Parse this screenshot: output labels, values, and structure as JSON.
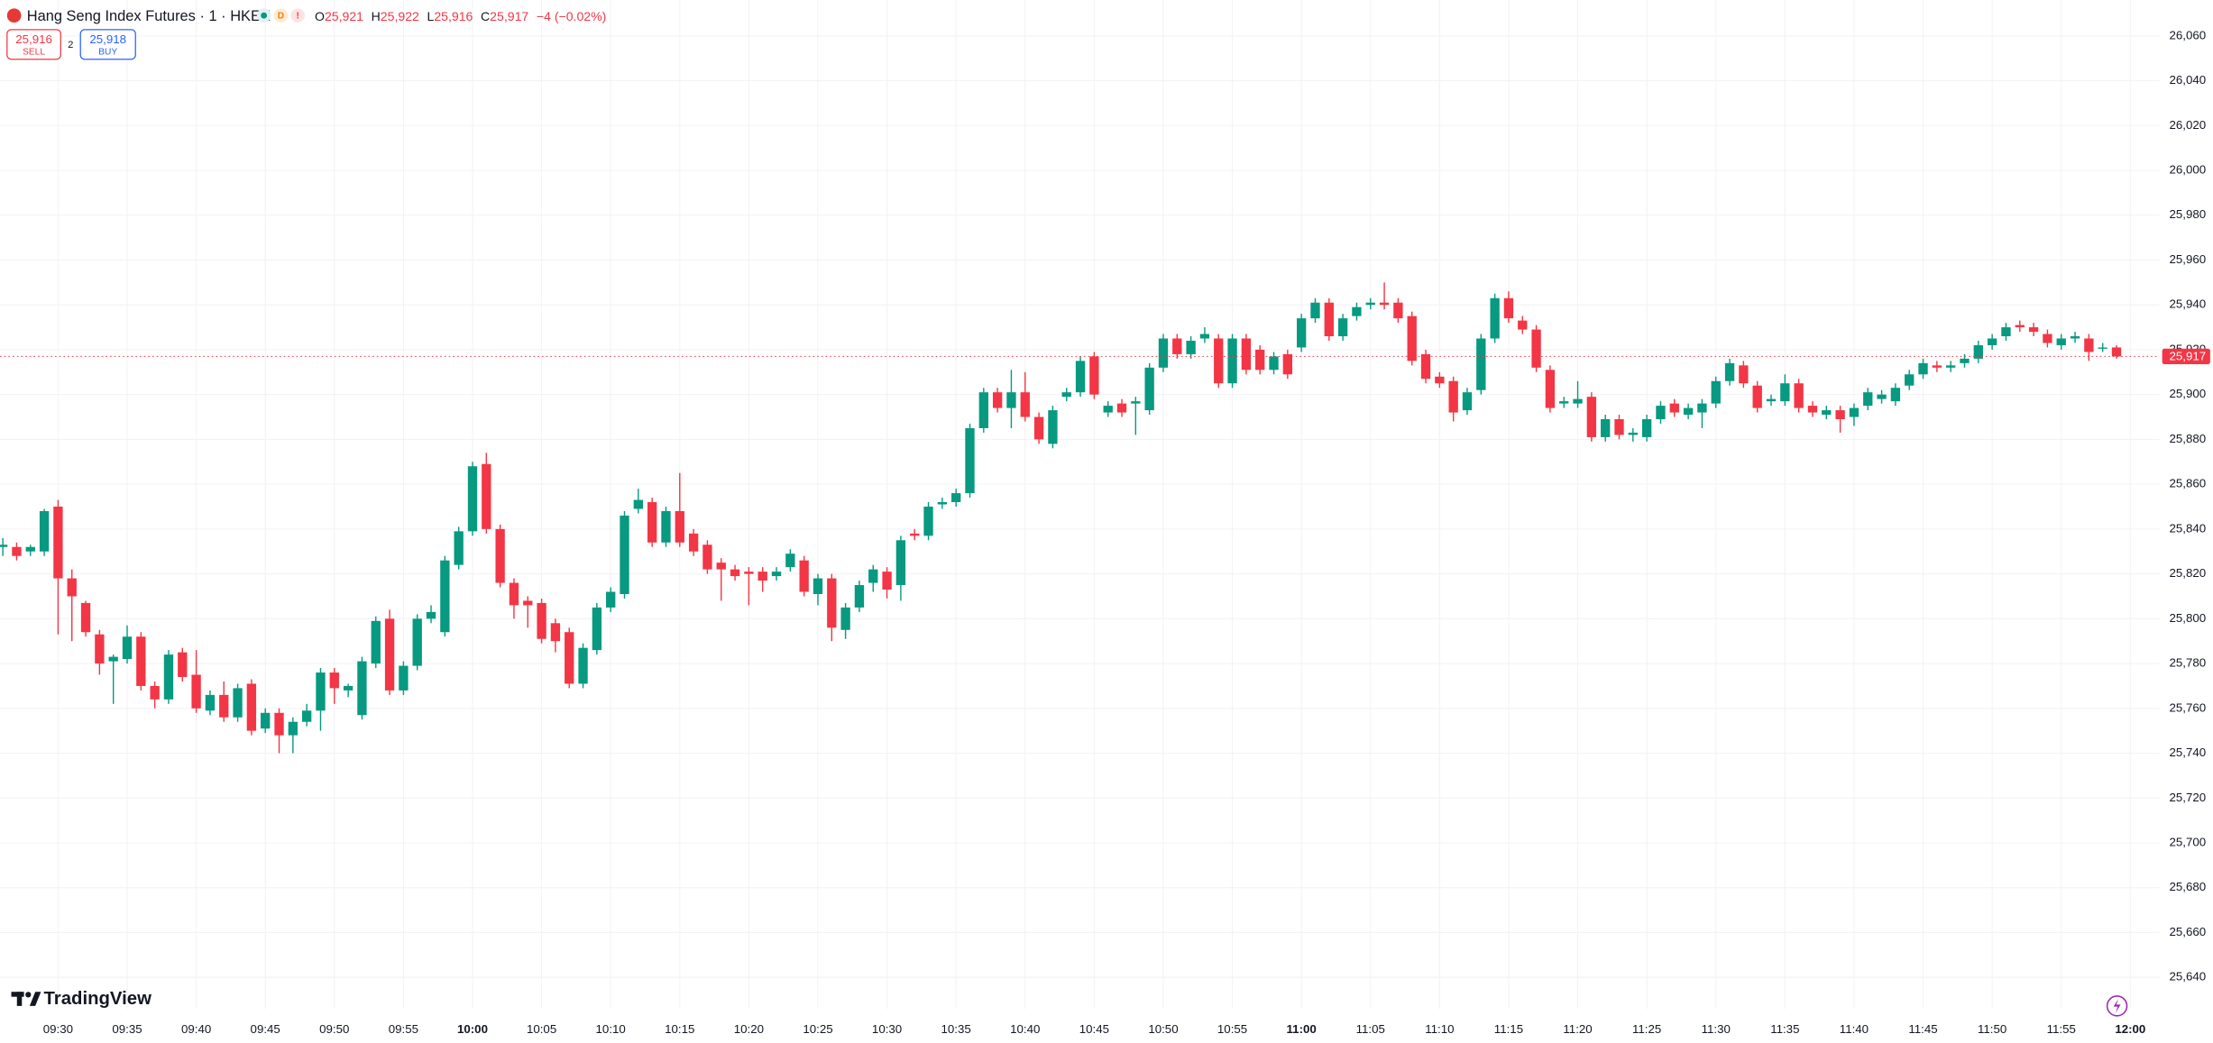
{
  "header": {
    "symbol": "Hang Seng Index Futures · 1 · HKEX",
    "status_d": "D",
    "status_warning": "!",
    "ohlc": [
      {
        "label": "O",
        "value": "25,921"
      },
      {
        "label": "H",
        "value": "25,922"
      },
      {
        "label": "L",
        "value": "25,916"
      },
      {
        "label": "C",
        "value": "25,917"
      }
    ],
    "change": "−4 (−0.02%)"
  },
  "trade": {
    "sell_price": "25,916",
    "sell": "SELL",
    "spread": "2",
    "buy_price": "25,918",
    "buy": "BUY"
  },
  "brand": "TradingView",
  "chart_data": {
    "type": "candlestick",
    "up_color": "#089981",
    "down_color": "#f23645",
    "grid": true,
    "xlim": [
      "09:26",
      "12:02"
    ],
    "ylim": [
      25626,
      26076
    ],
    "x": [
      "09:26",
      "09:27",
      "09:28",
      "09:29",
      "09:30",
      "09:31",
      "09:32",
      "09:33",
      "09:34",
      "09:35",
      "09:36",
      "09:37",
      "09:38",
      "09:39",
      "09:40",
      "09:41",
      "09:42",
      "09:43",
      "09:44",
      "09:45",
      "09:46",
      "09:47",
      "09:48",
      "09:49",
      "09:50",
      "09:51",
      "09:52",
      "09:53",
      "09:54",
      "09:55",
      "09:56",
      "09:57",
      "09:58",
      "09:59",
      "10:00",
      "10:01",
      "10:02",
      "10:03",
      "10:04",
      "10:05",
      "10:06",
      "10:07",
      "10:08",
      "10:09",
      "10:10",
      "10:11",
      "10:12",
      "10:13",
      "10:14",
      "10:15",
      "10:16",
      "10:17",
      "10:18",
      "10:19",
      "10:20",
      "10:21",
      "10:22",
      "10:23",
      "10:24",
      "10:25",
      "10:26",
      "10:27",
      "10:28",
      "10:29",
      "10:30",
      "10:31",
      "10:32",
      "10:33",
      "10:34",
      "10:35",
      "10:36",
      "10:37",
      "10:38",
      "10:39",
      "10:40",
      "10:41",
      "10:42",
      "10:43",
      "10:44",
      "10:45",
      "10:46",
      "10:47",
      "10:48",
      "10:49",
      "10:50",
      "10:51",
      "10:52",
      "10:53",
      "10:54",
      "10:55",
      "10:56",
      "10:57",
      "10:58",
      "10:59",
      "11:00",
      "11:01",
      "11:02",
      "11:03",
      "11:04",
      "11:05",
      "11:06",
      "11:07",
      "11:08",
      "11:09",
      "11:10",
      "11:11",
      "11:12",
      "11:13",
      "11:14",
      "11:15",
      "11:16",
      "11:17",
      "11:18",
      "11:19",
      "11:20",
      "11:21",
      "11:22",
      "11:23",
      "11:24",
      "11:25",
      "11:26",
      "11:27",
      "11:28",
      "11:29",
      "11:30",
      "11:31",
      "11:32",
      "11:33",
      "11:34",
      "11:35",
      "11:36",
      "11:37",
      "11:38",
      "11:39",
      "11:40",
      "11:41",
      "11:42",
      "11:43",
      "11:44",
      "11:45",
      "11:46",
      "11:47",
      "11:48",
      "11:49",
      "11:50",
      "11:51",
      "11:52",
      "11:53",
      "11:54",
      "11:55",
      "11:56",
      "11:57",
      "11:58",
      "11:59"
    ],
    "open": [
      25832,
      25832,
      25830,
      25830,
      25850,
      25818,
      25807,
      25793,
      25781,
      25782,
      25792,
      25770,
      25764,
      25785,
      25775,
      25759,
      25766,
      25756,
      25771,
      25751,
      25758,
      25748,
      25754,
      25759,
      25776,
      25768,
      25757,
      25780,
      25800,
      25768,
      25779,
      25800,
      25794,
      25824,
      25839,
      25869,
      25840,
      25816,
      25808,
      25807,
      25798,
      25794,
      25771,
      25786,
      25805,
      25811,
      25849,
      25852,
      25834,
      25848,
      25838,
      25833,
      25825,
      25822,
      25821,
      25821,
      25819,
      25823,
      25826,
      25811,
      25818,
      25795,
      25805,
      25816,
      25821,
      25815,
      25838,
      25837,
      25851,
      25852,
      25856,
      25885,
      25901,
      25894,
      25901,
      25890,
      25878,
      25899,
      25901,
      25917,
      25892,
      25896,
      25896,
      25893,
      25912,
      25925,
      25918,
      25925,
      25925,
      25905,
      25925,
      25920,
      25911,
      25918,
      25921,
      25934,
      25941,
      25926,
      25935,
      25940,
      25941,
      25941,
      25935,
      25918,
      25908,
      25906,
      25893,
      25902,
      25925,
      25943,
      25933,
      25929,
      25911,
      25896,
      25896,
      25899,
      25881,
      25889,
      25882,
      25881,
      25889,
      25896,
      25891,
      25892,
      25896,
      25906,
      25913,
      25904,
      25897,
      25897,
      25905,
      25895,
      25891,
      25893,
      25890,
      25895,
      25898,
      25897,
      25904,
      25909,
      25913,
      25912,
      25914,
      25916,
      25922,
      25926,
      25931,
      25930,
      25927,
      25922,
      25925,
      25925,
      25921,
      25921
    ],
    "high": [
      25836,
      25834,
      25833,
      25849,
      25853,
      25822,
      25808,
      25795,
      25784,
      25797,
      25794,
      25772,
      25786,
      25787,
      25786,
      25768,
      25772,
      25771,
      25773,
      25760,
      25760,
      25756,
      25762,
      25778,
      25778,
      25771,
      25783,
      25801,
      25804,
      25781,
      25802,
      25806,
      25828,
      25841,
      25870,
      25874,
      25842,
      25818,
      25810,
      25809,
      25800,
      25796,
      25789,
      25807,
      25814,
      25848,
      25858,
      25854,
      25850,
      25865,
      25840,
      25835,
      25827,
      25824,
      25823,
      25823,
      25823,
      25831,
      25828,
      25820,
      25820,
      25807,
      25817,
      25824,
      25823,
      25837,
      25840,
      25852,
      25854,
      25858,
      25887,
      25903,
      25903,
      25911,
      25910,
      25892,
      25895,
      25903,
      25917,
      25919,
      25897,
      25898,
      25899,
      25914,
      25927,
      25927,
      25926,
      25930,
      25927,
      25927,
      25927,
      25922,
      25919,
      25920,
      25936,
      25943,
      25943,
      25936,
      25941,
      25943,
      25950,
      25943,
      25937,
      25920,
      25910,
      25908,
      25903,
      25927,
      25945,
      25946,
      25935,
      25931,
      25913,
      25899,
      25906,
      25901,
      25891,
      25891,
      25885,
      25891,
      25897,
      25898,
      25896,
      25898,
      25908,
      25916,
      25915,
      25906,
      25900,
      25909,
      25907,
      25897,
      25895,
      25895,
      25896,
      25903,
      25902,
      25905,
      25911,
      25916,
      25915,
      25915,
      25918,
      25924,
      25927,
      25932,
      25933,
      25932,
      25929,
      25927,
      25928,
      25927,
      25923,
      25922
    ],
    "low": [
      25828,
      25826,
      25828,
      25828,
      25793,
      25790,
      25792,
      25775,
      25762,
      25780,
      25768,
      25760,
      25762,
      25772,
      25758,
      25757,
      25754,
      25754,
      25748,
      25749,
      25740,
      25740,
      25752,
      25750,
      25762,
      25765,
      25755,
      25778,
      25766,
      25766,
      25777,
      25798,
      25792,
      25822,
      25837,
      25838,
      25814,
      25800,
      25796,
      25789,
      25785,
      25769,
      25769,
      25784,
      25803,
      25809,
      25847,
      25832,
      25832,
      25832,
      25828,
      25820,
      25808,
      25817,
      25806,
      25812,
      25817,
      25821,
      25810,
      25806,
      25790,
      25791,
      25803,
      25812,
      25809,
      25808,
      25835,
      25835,
      25849,
      25850,
      25854,
      25883,
      25892,
      25885,
      25888,
      25878,
      25876,
      25897,
      25899,
      25898,
      25890,
      25890,
      25882,
      25891,
      25910,
      25916,
      25916,
      25923,
      25903,
      25903,
      25909,
      25909,
      25909,
      25907,
      25919,
      25932,
      25924,
      25924,
      25933,
      25938,
      25938,
      25932,
      25913,
      25905,
      25903,
      25888,
      25891,
      25900,
      25923,
      25932,
      25927,
      25910,
      25892,
      25894,
      25894,
      25879,
      25879,
      25880,
      25879,
      25879,
      25887,
      25890,
      25889,
      25885,
      25894,
      25904,
      25903,
      25892,
      25895,
      25895,
      25892,
      25890,
      25889,
      25883,
      25886,
      25893,
      25896,
      25895,
      25902,
      25907,
      25910,
      25910,
      25912,
      25914,
      25920,
      25924,
      25928,
      25926,
      25921,
      25920,
      25923,
      25915,
      25919,
      25916
    ],
    "close": [
      25833,
      25828,
      25832,
      25848,
      25818,
      25810,
      25794,
      25780,
      25783,
      25792,
      25770,
      25764,
      25784,
      25774,
      25760,
      25766,
      25756,
      25769,
      25750,
      25758,
      25748,
      25754,
      25759,
      25776,
      25769,
      25770,
      25781,
      25799,
      25768,
      25779,
      25800,
      25803,
      25826,
      25839,
      25868,
      25840,
      25816,
      25806,
      25806,
      25791,
      25790,
      25771,
      25787,
      25805,
      25812,
      25846,
      25853,
      25834,
      25848,
      25834,
      25830,
      25822,
      25822,
      25819,
      25820,
      25817,
      25821,
      25829,
      25812,
      25818,
      25796,
      25805,
      25815,
      25822,
      25813,
      25835,
      25837,
      25850,
      25852,
      25856,
      25885,
      25901,
      25894,
      25901,
      25890,
      25880,
      25893,
      25901,
      25915,
      25900,
      25895,
      25892,
      25897,
      25912,
      25925,
      25918,
      25924,
      25927,
      25905,
      25925,
      25911,
      25911,
      25917,
      25909,
      25934,
      25941,
      25926,
      25934,
      25939,
      25941,
      25940,
      25934,
      25915,
      25907,
      25905,
      25892,
      25901,
      25925,
      25943,
      25934,
      25929,
      25912,
      25894,
      25897,
      25898,
      25881,
      25889,
      25882,
      25883,
      25889,
      25895,
      25892,
      25894,
      25896,
      25906,
      25914,
      25905,
      25894,
      25898,
      25905,
      25894,
      25892,
      25893,
      25889,
      25894,
      25901,
      25900,
      25903,
      25909,
      25914,
      25912,
      25913,
      25916,
      25922,
      25925,
      25930,
      25930,
      25928,
      25923,
      25925,
      25926,
      25919,
      25921,
      25917
    ],
    "last_price": {
      "value": 25917,
      "label": "25,917"
    },
    "xticks": [
      "09:30",
      "09:35",
      "09:40",
      "09:45",
      "09:50",
      "09:55",
      "10:00",
      "10:05",
      "10:10",
      "10:15",
      "10:20",
      "10:25",
      "10:30",
      "10:35",
      "10:40",
      "10:45",
      "10:50",
      "10:55",
      "11:00",
      "11:05",
      "11:10",
      "11:15",
      "11:20",
      "11:25",
      "11:30",
      "11:35",
      "11:40",
      "11:45",
      "11:50",
      "11:55",
      "12:00"
    ],
    "yticks": [
      {
        "value": 25640,
        "label": "25,640"
      },
      {
        "value": 25660,
        "label": "25,660"
      },
      {
        "value": 25680,
        "label": "25,680"
      },
      {
        "value": 25700,
        "label": "25,700"
      },
      {
        "value": 25720,
        "label": "25,720"
      },
      {
        "value": 25740,
        "label": "25,740"
      },
      {
        "value": 25760,
        "label": "25,760"
      },
      {
        "value": 25780,
        "label": "25,780"
      },
      {
        "value": 25800,
        "label": "25,800"
      },
      {
        "value": 25820,
        "label": "25,820"
      },
      {
        "value": 25840,
        "label": "25,840"
      },
      {
        "value": 25860,
        "label": "25,860"
      },
      {
        "value": 25880,
        "label": "25,880"
      },
      {
        "value": 25900,
        "label": "25,900"
      },
      {
        "value": 25920,
        "label": "25,920"
      },
      {
        "value": 25940,
        "label": "25,940"
      },
      {
        "value": 25960,
        "label": "25,960"
      },
      {
        "value": 25980,
        "label": "25,980"
      },
      {
        "value": 26000,
        "label": "26,000"
      },
      {
        "value": 26020,
        "label": "26,020"
      },
      {
        "value": 26040,
        "label": "26,040"
      },
      {
        "value": 26060,
        "label": "26,060"
      }
    ]
  }
}
